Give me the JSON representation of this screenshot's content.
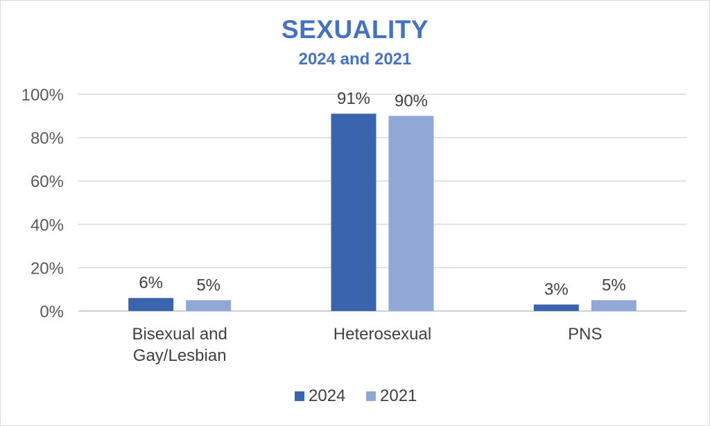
{
  "chart_data": {
    "type": "bar",
    "title": "SEXUALITY",
    "subtitle": "2024 and 2021",
    "categories": [
      [
        "Bisexual and",
        "Gay/Lesbian"
      ],
      [
        "Heterosexual"
      ],
      [
        "PNS"
      ]
    ],
    "series": [
      {
        "name": "2024",
        "values": [
          6,
          91,
          3
        ],
        "labels": [
          "6%",
          "91%",
          "3%"
        ],
        "color": "#3a64ad"
      },
      {
        "name": "2021",
        "values": [
          5,
          90,
          5
        ],
        "labels": [
          "5%",
          "90%",
          "5%"
        ],
        "color": "#91a7d6"
      }
    ],
    "ylim": [
      0,
      100
    ],
    "yticks": [
      0,
      20,
      40,
      60,
      80,
      100
    ],
    "ytick_labels": [
      "0%",
      "20%",
      "40%",
      "60%",
      "80%",
      "100%"
    ],
    "grid": true,
    "legend_position": "bottom"
  }
}
